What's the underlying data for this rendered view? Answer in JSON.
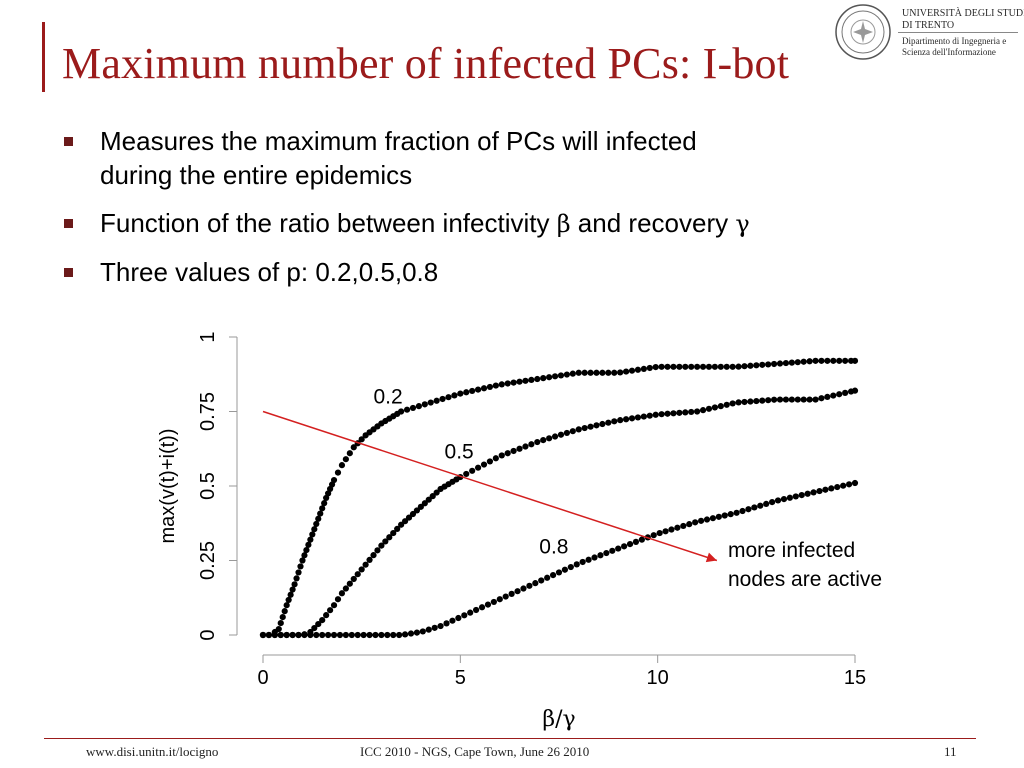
{
  "title": "Maximum number of infected PCs: I-bot",
  "university": {
    "name_line1": "UNIVERSITÀ DEGLI STUDI",
    "name_line2": "DI TRENTO",
    "dept_line1": "Dipartimento di Ingegneria e",
    "dept_line2": "Scienza dell'Informazione"
  },
  "bullets": [
    {
      "text": "Measures the maximum fraction of PCs will infected",
      "text2": "during the entire epidemics"
    },
    {
      "text": "Function of the ratio between infectivity ",
      "sym1": "β",
      "mid": " and recovery ",
      "sym2": "γ"
    },
    {
      "text": "Three values of p: 0.2,0.5,0.8"
    }
  ],
  "annotation": {
    "line1": "more infected",
    "line2": "nodes are active"
  },
  "footer": {
    "left": "www.disi.unitn.it/locigno",
    "center": "ICC 2010 - NGS, Cape Town, June 26  2010",
    "page": "11"
  },
  "chart_data": {
    "type": "scatter",
    "xlabel": "β/γ",
    "ylabel": "max(v(t)+i(t))",
    "xlim": [
      0,
      15
    ],
    "ylim": [
      0,
      1
    ],
    "xticks": [
      0,
      5,
      10,
      15
    ],
    "yticks": [
      0,
      0.25,
      0.5,
      0.75,
      1
    ],
    "series": [
      {
        "name": "0.2",
        "points": [
          [
            0,
            0
          ],
          [
            0.2,
            0
          ],
          [
            0.4,
            0.02
          ],
          [
            0.6,
            0.1
          ],
          [
            0.8,
            0.17
          ],
          [
            1,
            0.25
          ],
          [
            1.2,
            0.32
          ],
          [
            1.4,
            0.39
          ],
          [
            1.6,
            0.46
          ],
          [
            1.8,
            0.52
          ],
          [
            2,
            0.57
          ],
          [
            2.3,
            0.63
          ],
          [
            2.6,
            0.67
          ],
          [
            3,
            0.71
          ],
          [
            3.5,
            0.75
          ],
          [
            4,
            0.77
          ],
          [
            5,
            0.81
          ],
          [
            6,
            0.84
          ],
          [
            7,
            0.86
          ],
          [
            8,
            0.88
          ],
          [
            9,
            0.88
          ],
          [
            10,
            0.9
          ],
          [
            11,
            0.9
          ],
          [
            12,
            0.9
          ],
          [
            13,
            0.91
          ],
          [
            14,
            0.92
          ],
          [
            15,
            0.92
          ]
        ]
      },
      {
        "name": "0.5",
        "points": [
          [
            0,
            0
          ],
          [
            0.5,
            0
          ],
          [
            1,
            0
          ],
          [
            1.2,
            0.01
          ],
          [
            1.5,
            0.05
          ],
          [
            1.8,
            0.1
          ],
          [
            2,
            0.14
          ],
          [
            2.5,
            0.22
          ],
          [
            3,
            0.3
          ],
          [
            3.5,
            0.37
          ],
          [
            4,
            0.43
          ],
          [
            4.5,
            0.49
          ],
          [
            5,
            0.53
          ],
          [
            6,
            0.6
          ],
          [
            7,
            0.65
          ],
          [
            8,
            0.69
          ],
          [
            9,
            0.72
          ],
          [
            10,
            0.74
          ],
          [
            11,
            0.75
          ],
          [
            12,
            0.78
          ],
          [
            13,
            0.79
          ],
          [
            14,
            0.79
          ],
          [
            15,
            0.82
          ]
        ]
      },
      {
        "name": "0.8",
        "points": [
          [
            0,
            0
          ],
          [
            1,
            0
          ],
          [
            2,
            0
          ],
          [
            3,
            0
          ],
          [
            3.5,
            0
          ],
          [
            4,
            0.01
          ],
          [
            4.5,
            0.03
          ],
          [
            5,
            0.06
          ],
          [
            6,
            0.12
          ],
          [
            7,
            0.18
          ],
          [
            8,
            0.24
          ],
          [
            9,
            0.29
          ],
          [
            10,
            0.34
          ],
          [
            11,
            0.38
          ],
          [
            12,
            0.41
          ],
          [
            13,
            0.45
          ],
          [
            14,
            0.48
          ],
          [
            15,
            0.51
          ]
        ]
      }
    ],
    "arrow": {
      "from": [
        0,
        0.75
      ],
      "to": [
        11.5,
        0.25
      ]
    }
  }
}
